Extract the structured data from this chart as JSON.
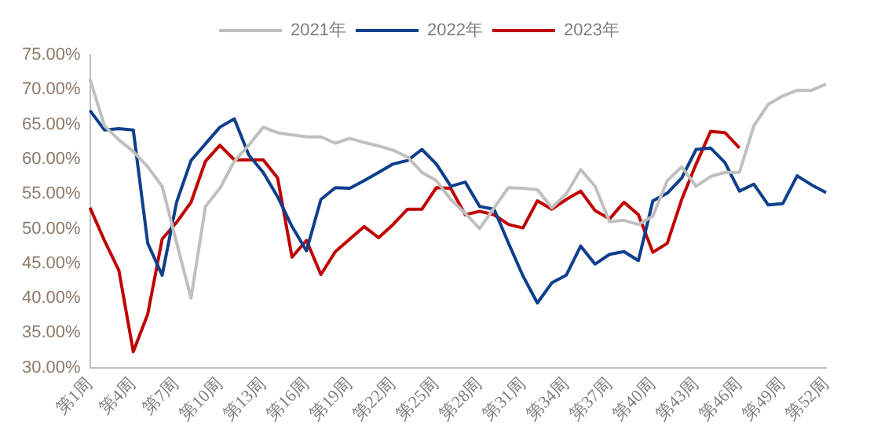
{
  "chart_data": {
    "type": "line",
    "categories": [
      "第1周",
      null,
      null,
      "第4周",
      null,
      null,
      "第7周",
      null,
      null,
      "第10周",
      null,
      null,
      "第13周",
      null,
      null,
      "第16周",
      null,
      null,
      "第19周",
      null,
      null,
      "第22周",
      null,
      null,
      "第25周",
      null,
      null,
      "第28周",
      null,
      null,
      "第31周",
      null,
      null,
      "第34周",
      null,
      null,
      "第37周",
      null,
      null,
      "第40周",
      null,
      null,
      "第43周",
      null,
      null,
      "第46周",
      null,
      null,
      "第49周",
      null,
      null,
      "第52周"
    ],
    "series": [
      {
        "name": "2021年",
        "color": "#bfbfbf",
        "values": [
          71.5,
          64.8,
          62.8,
          61.1,
          58.9,
          56.1,
          48.0,
          40.0,
          53.2,
          55.8,
          59.7,
          62.0,
          64.6,
          63.8,
          63.5,
          63.2,
          63.2,
          62.3,
          63.0,
          62.4,
          61.9,
          61.3,
          60.3,
          58.1,
          56.9,
          54.2,
          52.2,
          50.0,
          53.0,
          55.9,
          55.8,
          55.6,
          53.0,
          55.0,
          58.5,
          56.1,
          51.0,
          51.2,
          50.6,
          51.8,
          56.9,
          58.9,
          56.1,
          57.5,
          58.1,
          58.1,
          64.8,
          67.9,
          69.1,
          69.9,
          69.9,
          70.8
        ]
      },
      {
        "name": "2022年",
        "color": "#0e3f8c",
        "values": [
          67.0,
          64.2,
          64.4,
          64.2,
          47.9,
          43.3,
          53.8,
          59.8,
          62.2,
          64.6,
          65.8,
          60.6,
          58.1,
          54.6,
          50.3,
          46.8,
          54.2,
          55.9,
          55.8,
          56.9,
          58.1,
          59.3,
          59.8,
          61.4,
          59.3,
          56.1,
          56.7,
          53.2,
          52.8,
          47.9,
          43.2,
          39.3,
          42.2,
          43.3,
          47.5,
          44.9,
          46.3,
          46.7,
          45.4,
          54.0,
          55.1,
          57.3,
          61.4,
          61.6,
          59.5,
          55.4,
          56.4,
          53.4,
          53.6,
          57.6,
          56.3,
          55.2
        ]
      },
      {
        "name": "2023年",
        "color": "#c00000",
        "values": [
          53.0,
          48.3,
          44.0,
          32.3,
          37.7,
          48.5,
          50.9,
          53.8,
          59.7,
          62.0,
          59.9,
          59.9,
          59.9,
          57.3,
          45.9,
          48.3,
          43.4,
          46.7,
          48.5,
          50.3,
          48.7,
          50.6,
          52.8,
          52.8,
          55.9,
          55.8,
          52.0,
          52.5,
          52.0,
          50.6,
          50.1,
          54.0,
          52.8,
          54.2,
          55.4,
          52.6,
          51.4,
          53.8,
          52.0,
          46.6,
          47.9,
          54.2,
          59.3,
          64.0,
          63.8,
          61.6,
          null,
          null,
          null,
          null,
          null,
          null
        ]
      }
    ],
    "ylim": [
      30,
      75
    ],
    "yticks": [
      {
        "value": 30,
        "label": "30.00%"
      },
      {
        "value": 35,
        "label": "35.00%"
      },
      {
        "value": 40,
        "label": "40.00%"
      },
      {
        "value": 45,
        "label": "45.00%"
      },
      {
        "value": 50,
        "label": "50.00%"
      },
      {
        "value": 55,
        "label": "55.00%"
      },
      {
        "value": 60,
        "label": "60.00%"
      },
      {
        "value": 65,
        "label": "65.00%"
      },
      {
        "value": 70,
        "label": "70.00%"
      },
      {
        "value": 75,
        "label": "75.00%"
      }
    ],
    "grid": false,
    "legend": "top",
    "marker": "none",
    "line_style": "solid"
  }
}
